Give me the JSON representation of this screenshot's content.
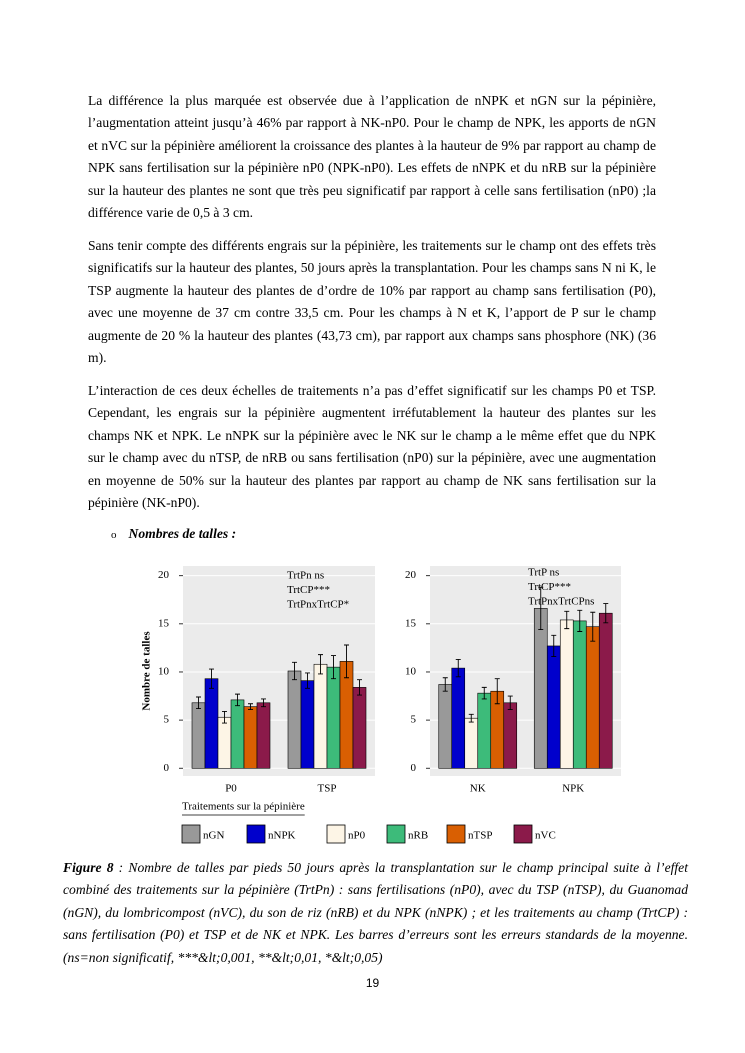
{
  "paragraphs": [
    "La différence la plus marquée est observée due à l’application de nNPK et nGN sur la pépinière, l’augmentation atteint jusqu’à 46% par rapport à NK-nP0. Pour le champ de NPK, les apports de nGN et nVC sur la pépinière améliorent la croissance  des plantes à la hauteur de 9% par rapport au champ de NPK sans fertilisation sur la pépinière nP0 (NPK-nP0). Les effets de nNPK et du nRB  sur la pépinière sur la hauteur des plantes ne sont que très peu significatif par rapport à celle sans fertilisation (nP0) ;la différence varie de 0,5 à 3 cm.",
    "Sans tenir compte des différents engrais sur la pépinière, les traitements sur le champ ont des effets très significatifs sur la hauteur des plantes, 50 jours après la transplantation. Pour les champs sans N ni K, le TSP augmente la hauteur des plantes de d’ordre de  10% par rapport au champ sans fertilisation (P0), avec une moyenne de 37 cm contre 33,5 cm. Pour les champs à N et K, l’apport de P sur le champ augmente de 20 % la hauteur des plantes (43,73 cm),  par rapport aux champs sans phosphore (NK) (36 m).",
    "L’interaction de ces deux échelles de traitements n’a pas d’effet significatif sur les champs P0 et TSP. Cependant, les engrais sur la pépinière augmentent irréfutablement la hauteur des plantes sur les champs NK et NPK. Le nNPK sur la pépinière avec le NK sur le champ a le même effet que du NPK sur le champ avec du nTSP, de nRB ou sans fertilisation (nP0) sur la pépinière, avec une augmentation en moyenne de 50% sur la hauteur des plantes par rapport au champ de NK sans fertilisation sur la pépinière (NK-nP0)."
  ],
  "section_heading": "Nombres de talles :",
  "chart_data": [
    {
      "type": "bar",
      "y_label": "Nombre de talles",
      "x_label": "Traitements sur la pépinière",
      "categories": [
        "P0",
        "TSP"
      ],
      "annotations": [
        "TrtPn ns",
        "TrtCP***",
        "TrtPnxTrtCP*"
      ],
      "ylim": [
        -0.8,
        21
      ],
      "yticks": [
        0,
        5,
        10,
        15,
        20
      ],
      "grid": true,
      "series": [
        {
          "name": "nGN",
          "color": "#999999",
          "values": [
            6.8,
            10.1
          ],
          "errors": [
            0.6,
            0.9
          ]
        },
        {
          "name": "nNPK",
          "color": "#0000cc",
          "values": [
            9.3,
            9.1
          ],
          "errors": [
            1.0,
            0.8
          ]
        },
        {
          "name": "nP0",
          "color": "#fdf5e6",
          "values": [
            5.3,
            10.8
          ],
          "errors": [
            0.6,
            1.0
          ]
        },
        {
          "name": "nRB",
          "color": "#3dbb7a",
          "values": [
            7.1,
            10.5
          ],
          "errors": [
            0.6,
            1.2
          ]
        },
        {
          "name": "nTSP",
          "color": "#d95f02",
          "values": [
            6.4,
            11.1
          ],
          "errors": [
            0.3,
            1.7
          ]
        },
        {
          "name": "nVC",
          "color": "#8b1a4a",
          "values": [
            6.8,
            8.4
          ],
          "errors": [
            0.4,
            0.8
          ]
        }
      ]
    },
    {
      "type": "bar",
      "categories": [
        "NK",
        "NPK"
      ],
      "annotations": [
        "TrtP ns",
        "TrtCP***",
        "TrtPnxTrtCPns"
      ],
      "ylim": [
        -0.8,
        21
      ],
      "yticks": [
        0,
        5,
        10,
        15,
        20
      ],
      "grid": true,
      "series": [
        {
          "color": "#999999",
          "values": [
            8.7,
            16.6
          ],
          "errors": [
            0.7,
            2.2
          ]
        },
        {
          "color": "#0000cc",
          "values": [
            10.4,
            12.7
          ],
          "errors": [
            0.9,
            1.1
          ]
        },
        {
          "color": "#fdf5e6",
          "values": [
            5.2,
            15.4
          ],
          "errors": [
            0.4,
            0.9
          ]
        },
        {
          "color": "#3dbb7a",
          "values": [
            7.8,
            15.3
          ],
          "errors": [
            0.6,
            1.1
          ]
        },
        {
          "color": "#d95f02",
          "values": [
            8.0,
            14.7
          ],
          "errors": [
            1.3,
            1.5
          ]
        },
        {
          "color": "#8b1a4a",
          "values": [
            6.8,
            16.1
          ],
          "errors": [
            0.7,
            1.0
          ]
        }
      ]
    }
  ],
  "caption": {
    "label": "Figure 8",
    "text": " : Nombre de talles  par pieds 50 jours après la transplantation sur le champ principal suite à l’effet combiné des traitements sur la pépinière (TrtPn) : sans fertilisations (nP0), avec du TSP (nTSP), du Guanomad (nGN), du lombricompost (nVC), du son de riz (nRB) et du NPK (nNPK) ; et les traitements au champ (TrtCP) : sans fertilisation (P0) et TSP et de NK et NPK. Les barres d’erreurs sont les erreurs standards de la moyenne. (ns=non significatif, ***&lt;0,001, **&lt;0,01, *&lt;0,05)"
  },
  "page_number": "19"
}
